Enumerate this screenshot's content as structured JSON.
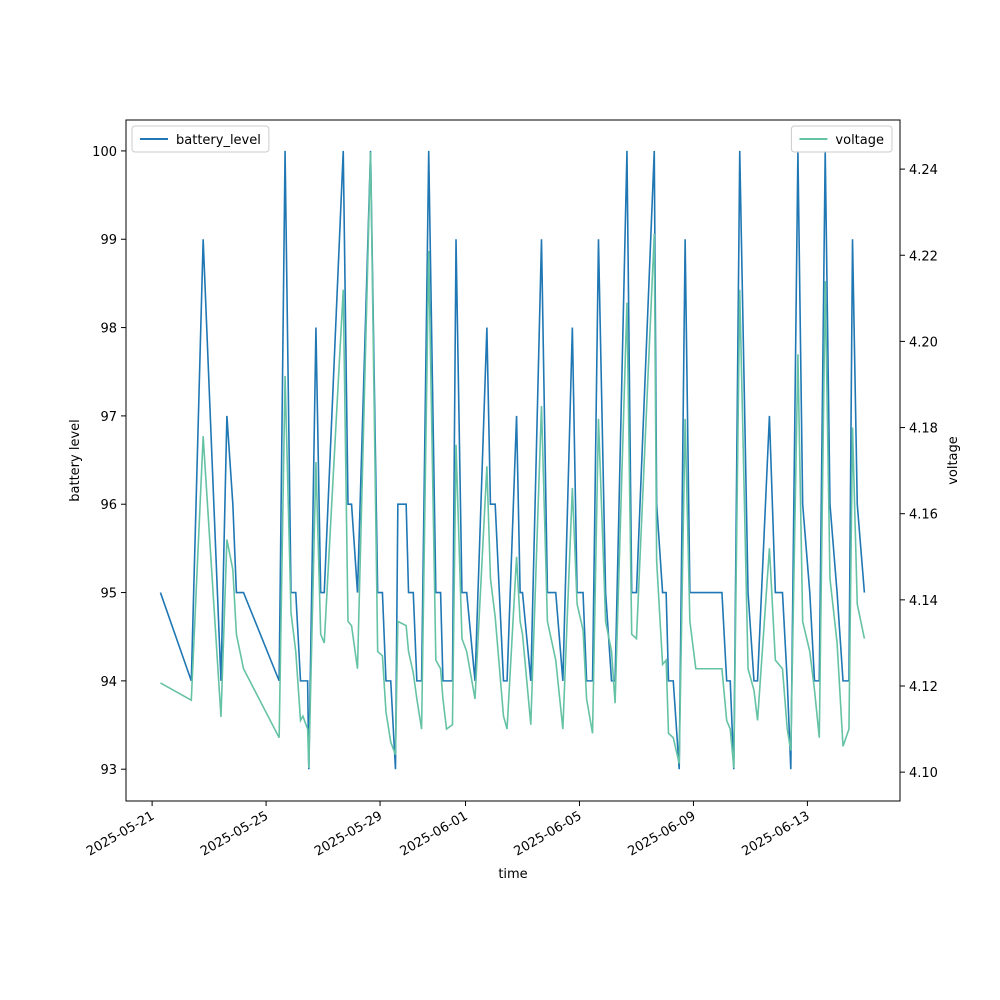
{
  "chart_data": {
    "type": "line",
    "xlabel": "time",
    "ylabel": "battery level",
    "y2label": "voltage",
    "x": [
      "2025-05-21T07:00",
      "2025-05-22T09:00",
      "2025-05-22T19:00",
      "2025-05-23T10:00",
      "2025-05-23T15:00",
      "2025-05-23T20:00",
      "2025-05-23T23:00",
      "2025-05-24T05:00",
      "2025-05-25T11:00",
      "2025-05-25T16:00",
      "2025-05-25T21:00",
      "2025-05-26T01:00",
      "2025-05-26T05:00",
      "2025-05-26T07:00",
      "2025-05-26T11:00",
      "2025-05-26T12:00",
      "2025-05-26T18:00",
      "2025-05-26T22:00",
      "2025-05-27T01:00",
      "2025-05-27T17:00",
      "2025-05-27T21:00",
      "2025-05-28T00:00",
      "2025-05-28T05:00",
      "2025-05-28T16:00",
      "2025-05-28T22:00",
      "2025-05-29T02:00",
      "2025-05-29T05:00",
      "2025-05-29T09:00",
      "2025-05-29T13:00",
      "2025-05-29T15:00",
      "2025-05-29T22:00",
      "2025-05-30T00:00",
      "2025-05-30T04:00",
      "2025-05-30T07:00",
      "2025-05-30T11:00",
      "2025-05-30T17:00",
      "2025-05-30T23:00",
      "2025-05-31T03:00",
      "2025-05-31T05:00",
      "2025-05-31T08:00",
      "2025-05-31T13:00",
      "2025-05-31T16:00",
      "2025-05-31T21:00",
      "2025-06-01T01:00",
      "2025-06-01T08:00",
      "2025-06-01T18:00",
      "2025-06-01T21:00",
      "2025-06-02T01:00",
      "2025-06-02T08:00",
      "2025-06-02T11:00",
      "2025-06-02T19:00",
      "2025-06-02T22:00",
      "2025-06-03T00:00",
      "2025-06-03T07:00",
      "2025-06-03T16:00",
      "2025-06-03T21:00",
      "2025-06-04T04:00",
      "2025-06-04T10:00",
      "2025-06-04T18:00",
      "2025-06-04T22:00",
      "2025-06-05T03:00",
      "2025-06-05T06:00",
      "2025-06-05T11:00",
      "2025-06-05T16:00",
      "2025-06-05T22:00",
      "2025-06-06T03:00",
      "2025-06-06T06:00",
      "2025-06-06T16:00",
      "2025-06-06T20:00",
      "2025-06-07T00:00",
      "2025-06-07T15:00",
      "2025-06-07T17:00",
      "2025-06-07T22:00",
      "2025-06-08T01:00",
      "2025-06-08T03:00",
      "2025-06-08T07:00",
      "2025-06-08T12:00",
      "2025-06-08T17:00",
      "2025-06-08T21:00",
      "2025-06-09T02:00",
      "2025-06-10T00:00",
      "2025-06-10T04:00",
      "2025-06-10T07:00",
      "2025-06-10T10:00",
      "2025-06-10T15:00",
      "2025-06-10T22:00",
      "2025-06-11T03:00",
      "2025-06-11T06:00",
      "2025-06-11T16:00",
      "2025-06-11T21:00",
      "2025-06-12T03:00",
      "2025-06-12T07:00",
      "2025-06-12T10:00",
      "2025-06-12T16:00",
      "2025-06-12T20:00",
      "2025-06-13T02:00",
      "2025-06-13T06:00",
      "2025-06-13T10:00",
      "2025-06-13T15:00",
      "2025-06-13T19:00",
      "2025-06-14T01:00",
      "2025-06-14T06:00",
      "2025-06-14T11:00",
      "2025-06-14T14:00",
      "2025-06-14T18:00",
      "2025-06-15T00:00"
    ],
    "series": [
      {
        "name": "battery_level",
        "color": "#1f77b4",
        "axis": "y",
        "values": [
          95,
          94,
          99,
          94,
          97,
          96,
          95,
          95,
          94,
          100,
          95,
          95,
          94,
          94,
          94,
          93,
          98,
          95,
          95,
          100,
          96,
          96,
          95,
          100,
          95,
          95,
          94,
          94,
          93,
          96,
          96,
          95,
          95,
          94,
          94,
          100,
          95,
          95,
          94,
          94,
          94,
          99,
          95,
          95,
          94,
          98,
          96,
          96,
          94,
          94,
          97,
          95,
          95,
          94,
          99,
          95,
          95,
          94,
          98,
          95,
          95,
          94,
          94,
          99,
          95,
          94,
          94,
          100,
          95,
          95,
          100,
          96,
          95,
          95,
          94,
          94,
          93,
          99,
          95,
          95,
          95,
          94,
          94,
          93,
          100,
          95,
          94,
          94,
          97,
          95,
          95,
          94,
          93,
          100,
          96,
          95,
          94,
          94,
          100,
          96,
          95,
          94,
          94,
          99,
          96,
          95
        ]
      },
      {
        "name": "voltage",
        "color": "#66c2a5",
        "axis": "y2",
        "values": [
          4.1207,
          4.1167,
          4.178,
          4.1128,
          4.154,
          4.147,
          4.132,
          4.124,
          4.108,
          4.192,
          4.137,
          4.128,
          4.112,
          4.113,
          4.11,
          4.101,
          4.172,
          4.132,
          4.13,
          4.212,
          4.135,
          4.134,
          4.124,
          4.244,
          4.128,
          4.127,
          4.114,
          4.107,
          4.104,
          4.135,
          4.134,
          4.128,
          4.123,
          4.117,
          4.11,
          4.221,
          4.126,
          4.124,
          4.117,
          4.11,
          4.111,
          4.176,
          4.131,
          4.128,
          4.117,
          4.171,
          4.145,
          4.136,
          4.113,
          4.11,
          4.15,
          4.135,
          4.132,
          4.111,
          4.185,
          4.135,
          4.126,
          4.11,
          4.166,
          4.139,
          4.133,
          4.117,
          4.109,
          4.182,
          4.135,
          4.128,
          4.116,
          4.209,
          4.132,
          4.131,
          4.225,
          4.149,
          4.125,
          4.126,
          4.109,
          4.108,
          4.102,
          4.182,
          4.135,
          4.124,
          4.124,
          4.112,
          4.11,
          4.101,
          4.212,
          4.124,
          4.119,
          4.112,
          4.152,
          4.126,
          4.124,
          4.11,
          4.105,
          4.197,
          4.135,
          4.128,
          4.119,
          4.108,
          4.214,
          4.145,
          4.13,
          4.106,
          4.11,
          4.18,
          4.139,
          4.131
        ]
      }
    ],
    "xlim": [
      "2025-05-20T02:00",
      "2025-06-16T06:00"
    ],
    "xticks": [
      "2025-05-21",
      "2025-05-25",
      "2025-05-29",
      "2025-06-01",
      "2025-06-05",
      "2025-06-09",
      "2025-06-13"
    ],
    "ylim": [
      92.64,
      100.35
    ],
    "yticks": [
      93,
      94,
      95,
      96,
      97,
      98,
      99,
      100
    ],
    "y2lim": [
      4.0933,
      4.2514
    ],
    "y2ticks": [
      {
        "value": 4.1,
        "label": "4.10"
      },
      {
        "value": 4.12,
        "label": "4.12"
      },
      {
        "value": 4.14,
        "label": "4.14"
      },
      {
        "value": 4.16,
        "label": "4.16"
      },
      {
        "value": 4.18,
        "label": "4.18"
      },
      {
        "value": 4.2,
        "label": "4.20"
      },
      {
        "value": 4.22,
        "label": "4.22"
      },
      {
        "value": 4.24,
        "label": "4.24"
      }
    ],
    "legend": [
      "upper left",
      "upper right"
    ]
  }
}
